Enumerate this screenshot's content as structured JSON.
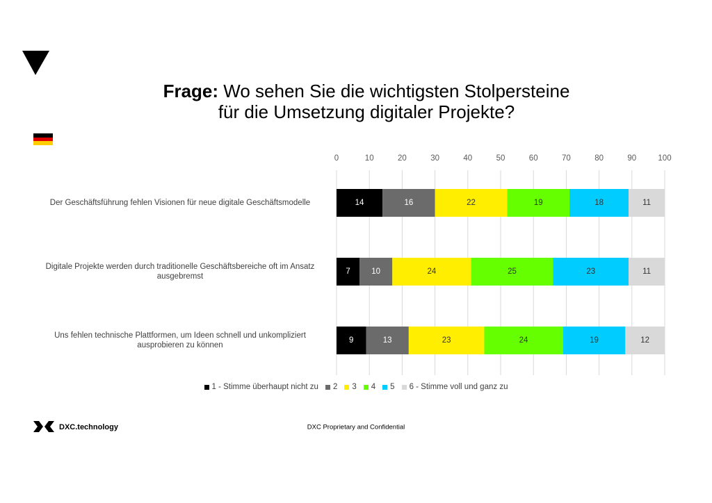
{
  "chart_data": {
    "type": "stacked-bar-horizontal",
    "title_label": "Frage:",
    "title": [
      "Wo sehen Sie die wichtigsten Stolpersteine",
      "für die Umsetzung digitaler Projekte?"
    ],
    "categories": [
      "Der Geschäftsführung fehlen Visionen für neue digitale Geschäftsmodelle",
      "Digitale Projekte werden durch traditionelle Geschäftsbereiche oft im Ansatz ausgebremst",
      "Uns fehlen technische Plattformen, um Ideen schnell und unkompliziert ausprobieren zu können"
    ],
    "series": [
      {
        "name": "1 - Stimme überhaupt nicht zu",
        "color": "#000000",
        "label_color": "#ffffff",
        "values": [
          14,
          7,
          9
        ]
      },
      {
        "name": "2",
        "color": "#6b6b6b",
        "label_color": "#ffffff",
        "values": [
          16,
          10,
          13
        ]
      },
      {
        "name": "3",
        "color": "#ffee00",
        "label_color": "#333333",
        "values": [
          22,
          24,
          23
        ]
      },
      {
        "name": "4",
        "color": "#66ff00",
        "label_color": "#333333",
        "values": [
          19,
          25,
          24
        ]
      },
      {
        "name": "5",
        "color": "#00ccff",
        "label_color": "#333333",
        "values": [
          18,
          23,
          19
        ]
      },
      {
        "name": "6 - Stimme voll und ganz zu",
        "color": "#d9d9d9",
        "label_color": "#333333",
        "values": [
          11,
          11,
          12
        ]
      }
    ],
    "xlim": [
      0,
      100
    ],
    "xticks": [
      0,
      10,
      20,
      30,
      40,
      50,
      60,
      70,
      80,
      90,
      100
    ],
    "grid": true
  },
  "footer": {
    "brand": "DXC.technology",
    "note": "DXC Proprietary and Confidential"
  }
}
